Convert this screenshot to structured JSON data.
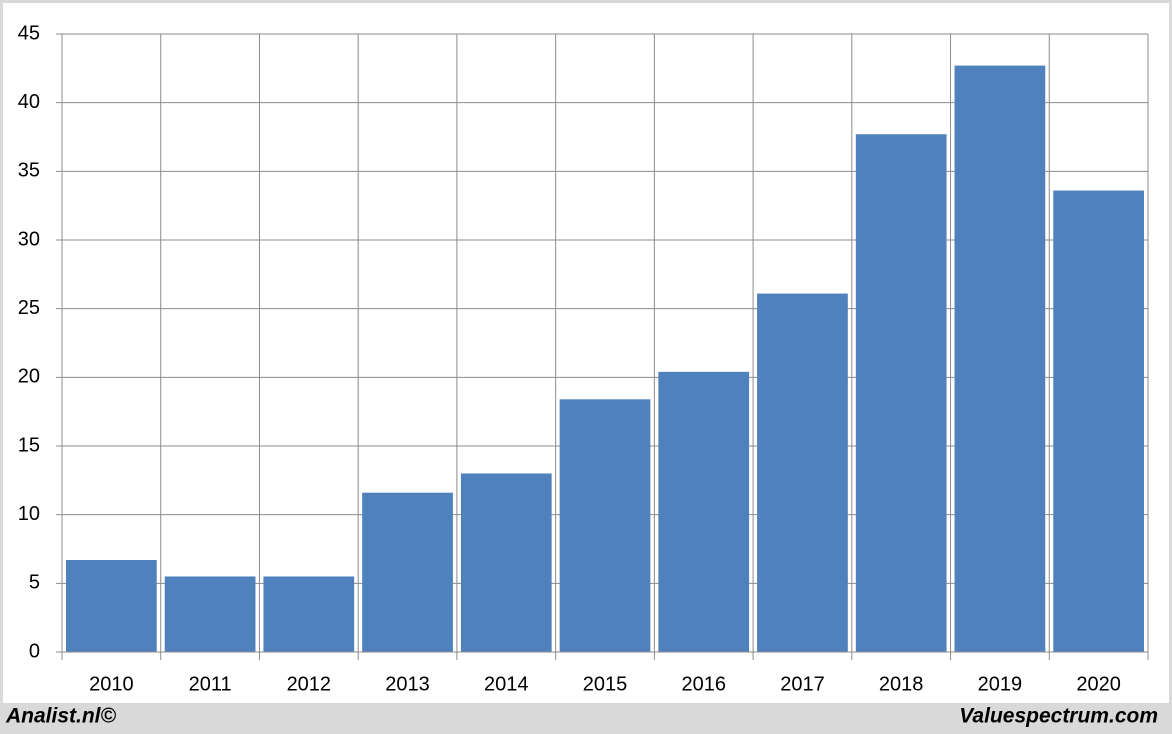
{
  "chart_data": {
    "type": "bar",
    "categories": [
      "2010",
      "2011",
      "2012",
      "2013",
      "2014",
      "2015",
      "2016",
      "2017",
      "2018",
      "2019",
      "2020"
    ],
    "values": [
      6.7,
      5.5,
      5.5,
      11.6,
      13.0,
      18.4,
      20.4,
      26.1,
      37.7,
      42.7,
      33.6
    ],
    "color": "#4f81bd",
    "ylim": [
      0,
      45
    ],
    "yticks": [
      0,
      5,
      10,
      15,
      20,
      25,
      30,
      35,
      40,
      45
    ],
    "grid": true
  },
  "footer": {
    "left": "Analist.nl©",
    "right": "Valuespectrum.com"
  }
}
